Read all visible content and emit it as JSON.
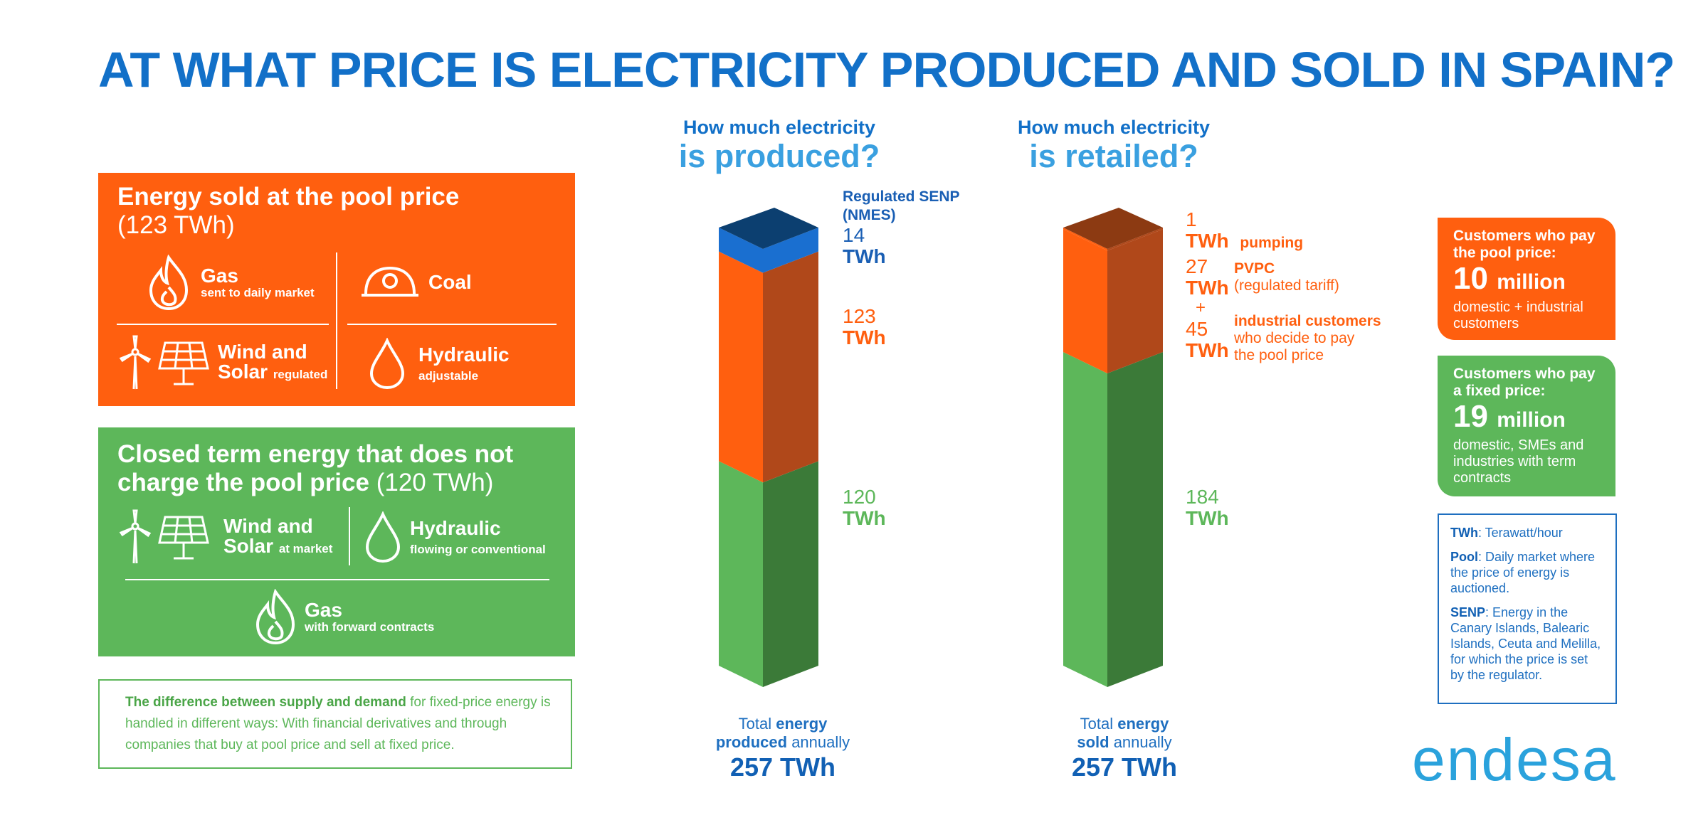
{
  "title": "AT WHAT PRICE IS ELECTRICITY PRODUCED AND SOLD IN SPAIN?",
  "pool_panel": {
    "title": "Energy sold at the pool price",
    "amount": "(123 TWh)",
    "items": [
      {
        "label": "Gas",
        "sub": "sent to daily market"
      },
      {
        "label": "Coal",
        "sub": ""
      },
      {
        "label": "Wind and",
        "label2": "Solar",
        "sub": "regulated"
      },
      {
        "label": "Hydraulic",
        "sub": "adjustable"
      }
    ],
    "color": "#ff5f0f"
  },
  "fixed_panel": {
    "title_line1": "Closed term energy that does not",
    "title_line2": "charge the pool price",
    "amount": "(120 TWh)",
    "items": [
      {
        "label": "Wind and",
        "label2": "Solar",
        "sub": "at market"
      },
      {
        "label": "Hydraulic",
        "sub": "flowing or conventional"
      },
      {
        "label": "Gas",
        "sub": "with forward contracts"
      }
    ],
    "color": "#5db75a"
  },
  "note": {
    "bold": "The difference between supply and demand",
    "text": " for fixed-price energy is handled in different ways: With financial derivatives and through companies that buy at pool price and sell at fixed price."
  },
  "produced": {
    "q1": "How much electricity",
    "q2": "is produced?",
    "labels": [
      {
        "title1": "Regulated SENP",
        "title2": "(NMES)",
        "num": "14",
        "unit": "TWh"
      },
      {
        "num": "123",
        "unit": "TWh"
      },
      {
        "num": "120",
        "unit": "TWh"
      }
    ],
    "total_line1a": "Total ",
    "total_line1b": "energy",
    "total_line2a": "produced",
    "total_line2b": " annually",
    "total_value": "257 TWh"
  },
  "retailed": {
    "q1": "How much electricity",
    "q2": "is retailed?",
    "labels": [
      {
        "num": "1",
        "unit": "TWh",
        "desc": "pumping"
      },
      {
        "num": "27",
        "unit": "TWh",
        "desc": "PVPC",
        "desc2": "(regulated tariff)"
      },
      {
        "plus": "+"
      },
      {
        "num": "45",
        "unit": "TWh",
        "desc": "industrial customers",
        "desc2": "who decide to pay",
        "desc3": "the pool price"
      },
      {
        "num": "184",
        "unit": "TWh"
      }
    ],
    "total_line1a": "Total ",
    "total_line1b": "energy",
    "total_line2a": "sold",
    "total_line2b": " annually",
    "total_value": "257 TWh"
  },
  "chart_data": [
    {
      "type": "bar",
      "title": "How much electricity is produced?",
      "categories": [
        "Produced"
      ],
      "series": [
        {
          "name": "120 TWh",
          "values": [
            120
          ]
        },
        {
          "name": "123 TWh",
          "values": [
            123
          ]
        },
        {
          "name": "Regulated SENP (NMES)",
          "values": [
            14
          ]
        }
      ],
      "ylim": [
        0,
        257
      ]
    },
    {
      "type": "bar",
      "title": "How much electricity is retailed?",
      "categories": [
        "Retailed"
      ],
      "series": [
        {
          "name": "184 TWh",
          "values": [
            184
          ]
        },
        {
          "name": "PVPC + industrial customers",
          "values": [
            72
          ]
        },
        {
          "name": "pumping",
          "values": [
            1
          ]
        }
      ],
      "ylim": [
        0,
        257
      ]
    }
  ],
  "colors": {
    "green_front": "#5db75a",
    "green_side": "#3b7a38",
    "orange_front": "#ff5f0f",
    "orange_side": "#b0481a",
    "orange_top": "#8c3a12",
    "blue_front": "#1a6fd0",
    "blue_top": "#0c3f70",
    "label_blue": "#1a5fb4",
    "label_orange": "#ff5f0f",
    "label_green": "#5db75a"
  },
  "customers_pool": {
    "h1": "Customers who pay",
    "h2": "the pool price:",
    "big": "10",
    "big_unit": "million",
    "d1": "domestic + industrial",
    "d2": "customers"
  },
  "customers_fixed": {
    "h1": "Customers who pay",
    "h2": "a fixed price:",
    "big": "19",
    "big_unit": "million",
    "d1": "domestic, SMEs and",
    "d2": "industries with term",
    "d3": "contracts"
  },
  "glossary": [
    {
      "term": "TWh",
      "def": ": Terawatt/hour"
    },
    {
      "term": "Pool",
      "def": ": Daily market where the price of energy is auctioned."
    },
    {
      "term": "SENP",
      "def": ": Energy in the Canary Islands, Balearic Islands, Ceuta and Melilla, for which the price is set by the regulator."
    }
  ],
  "logo": "endesa"
}
